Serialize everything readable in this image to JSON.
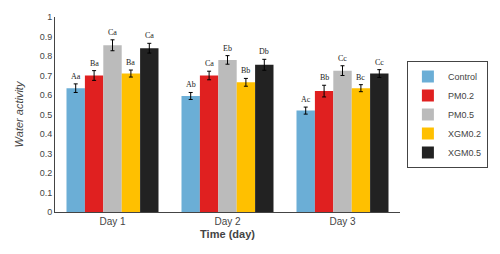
{
  "chart_data": {
    "type": "bar",
    "categories": [
      "Day 1",
      "Day 2",
      "Day 3"
    ],
    "series": [
      {
        "name": "Control",
        "color": "#6BAED6",
        "values": [
          0.635,
          0.595,
          0.52
        ],
        "errors": [
          0.022,
          0.018,
          0.018
        ],
        "annotations": [
          "Aa",
          "Ab",
          "Ac"
        ]
      },
      {
        "name": "PM0.2",
        "color": "#E02020",
        "values": [
          0.7,
          0.7,
          0.62
        ],
        "errors": [
          0.025,
          0.022,
          0.03
        ],
        "annotations": [
          "Ba",
          "Ca",
          "Bb"
        ]
      },
      {
        "name": "PM0.5",
        "color": "#BBBBBB",
        "values": [
          0.855,
          0.78,
          0.725
        ],
        "errors": [
          0.028,
          0.022,
          0.025
        ],
        "annotations": [
          "Ca",
          "Eb",
          "Cc"
        ]
      },
      {
        "name": "XGM0.2",
        "color": "#FFC000",
        "values": [
          0.71,
          0.665,
          0.635
        ],
        "errors": [
          0.018,
          0.02,
          0.018
        ],
        "annotations": [
          "Ba",
          "Bb",
          "Bc"
        ]
      },
      {
        "name": "XGM0.5",
        "color": "#222222",
        "values": [
          0.84,
          0.755,
          0.71
        ],
        "errors": [
          0.025,
          0.028,
          0.02
        ],
        "annotations": [
          "Ca",
          "Db",
          "Cc"
        ]
      }
    ],
    "xlabel": "Time (day)",
    "ylabel": "Water activity",
    "ylim": [
      0,
      1.0
    ],
    "yticks": [
      0,
      0.1,
      0.2,
      0.3,
      0.4,
      0.5,
      0.6,
      0.7,
      0.8,
      0.9,
      1
    ],
    "grid": false,
    "legend": "right"
  }
}
